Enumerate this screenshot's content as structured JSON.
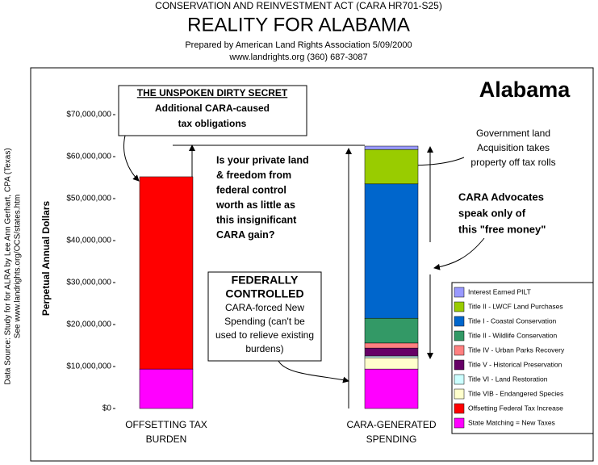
{
  "header": {
    "act": "CONSERVATION AND REINVESTMENT ACT (CARA HR701-S25)",
    "title": "REALITY FOR ALABAMA",
    "prepared": "Prepared by American Land Rights Association   5/09/2000",
    "contact": "www.landrights.org  (360) 687-3087"
  },
  "source": [
    "Data Source:  Study for for ALRA by Lee Ann Gerhart, CPA (Texas)",
    "See www.landrights.org/OCS/states.htm"
  ],
  "chart_data": {
    "type": "stacked-bar",
    "title": "Alabama",
    "y_label": "Perpetual Annual Dollars",
    "categories": [
      "OFFSETTING TAX BURDEN",
      "CARA-GENERATED SPENDING"
    ],
    "ylim": [
      0,
      70000000
    ],
    "yticks": [
      {
        "value": 0,
        "label": "$0"
      },
      {
        "value": 10000000,
        "label": "$10,000,000"
      },
      {
        "value": 20000000,
        "label": "$20,000,000"
      },
      {
        "value": 30000000,
        "label": "$30,000,000"
      },
      {
        "value": 40000000,
        "label": "$40,000,000"
      },
      {
        "value": 50000000,
        "label": "$50,000,000"
      },
      {
        "value": 60000000,
        "label": "$60,000,000"
      },
      {
        "value": 70000000,
        "label": "$70,000,000"
      }
    ],
    "grid": false,
    "series": [
      {
        "name": "State Matching = New Taxes",
        "color": "#ff00ff",
        "values": [
          9400000,
          9400000
        ]
      },
      {
        "name": "Offsetting Federal Tax Increase",
        "color": "#ff0000",
        "values": [
          45800000,
          null
        ]
      },
      {
        "name": "Title VIB - Endangered Species",
        "color": "#ffffcc",
        "values": [
          null,
          2700000
        ]
      },
      {
        "name": "Title VI - Land Restoration",
        "color": "#ccffff",
        "values": [
          null,
          400000
        ]
      },
      {
        "name": "Title V - Historical Preservation",
        "color": "#660066",
        "values": [
          null,
          1900000
        ]
      },
      {
        "name": "Title IV - Urban Parks Recovery",
        "color": "#ff8080",
        "values": [
          null,
          1200000
        ]
      },
      {
        "name": "Title II - Wildlife Conservation",
        "color": "#339966",
        "values": [
          null,
          5900000
        ]
      },
      {
        "name": "Title I - Coastal Conservation",
        "color": "#0066cc",
        "values": [
          null,
          32000000
        ]
      },
      {
        "name": "Title II - LWCF Land Purchases",
        "color": "#99cc00",
        "values": [
          null,
          8200000
        ]
      },
      {
        "name": "Interest Earned PILT",
        "color": "#9999ff",
        "values": [
          null,
          800000
        ]
      }
    ],
    "annotations": {
      "secret": [
        "THE UNSPOKEN DIRTY SECRET",
        "Additional CARA-caused",
        "tax obligations"
      ],
      "question": [
        "Is your private land",
        "& freedom from",
        "federal control",
        "worth as little as",
        "this insignificant",
        "CARA gain?"
      ],
      "federal": [
        "FEDERALLY",
        "CONTROLLED",
        "CARA-forced New",
        "Spending (can't be",
        "used to relieve existing",
        "burdens)"
      ],
      "government": [
        "Government land",
        "Acquisition takes",
        "property off tax rolls"
      ],
      "advocates": [
        "CARA Advocates",
        "speak only of",
        "this \"free money\""
      ]
    }
  }
}
